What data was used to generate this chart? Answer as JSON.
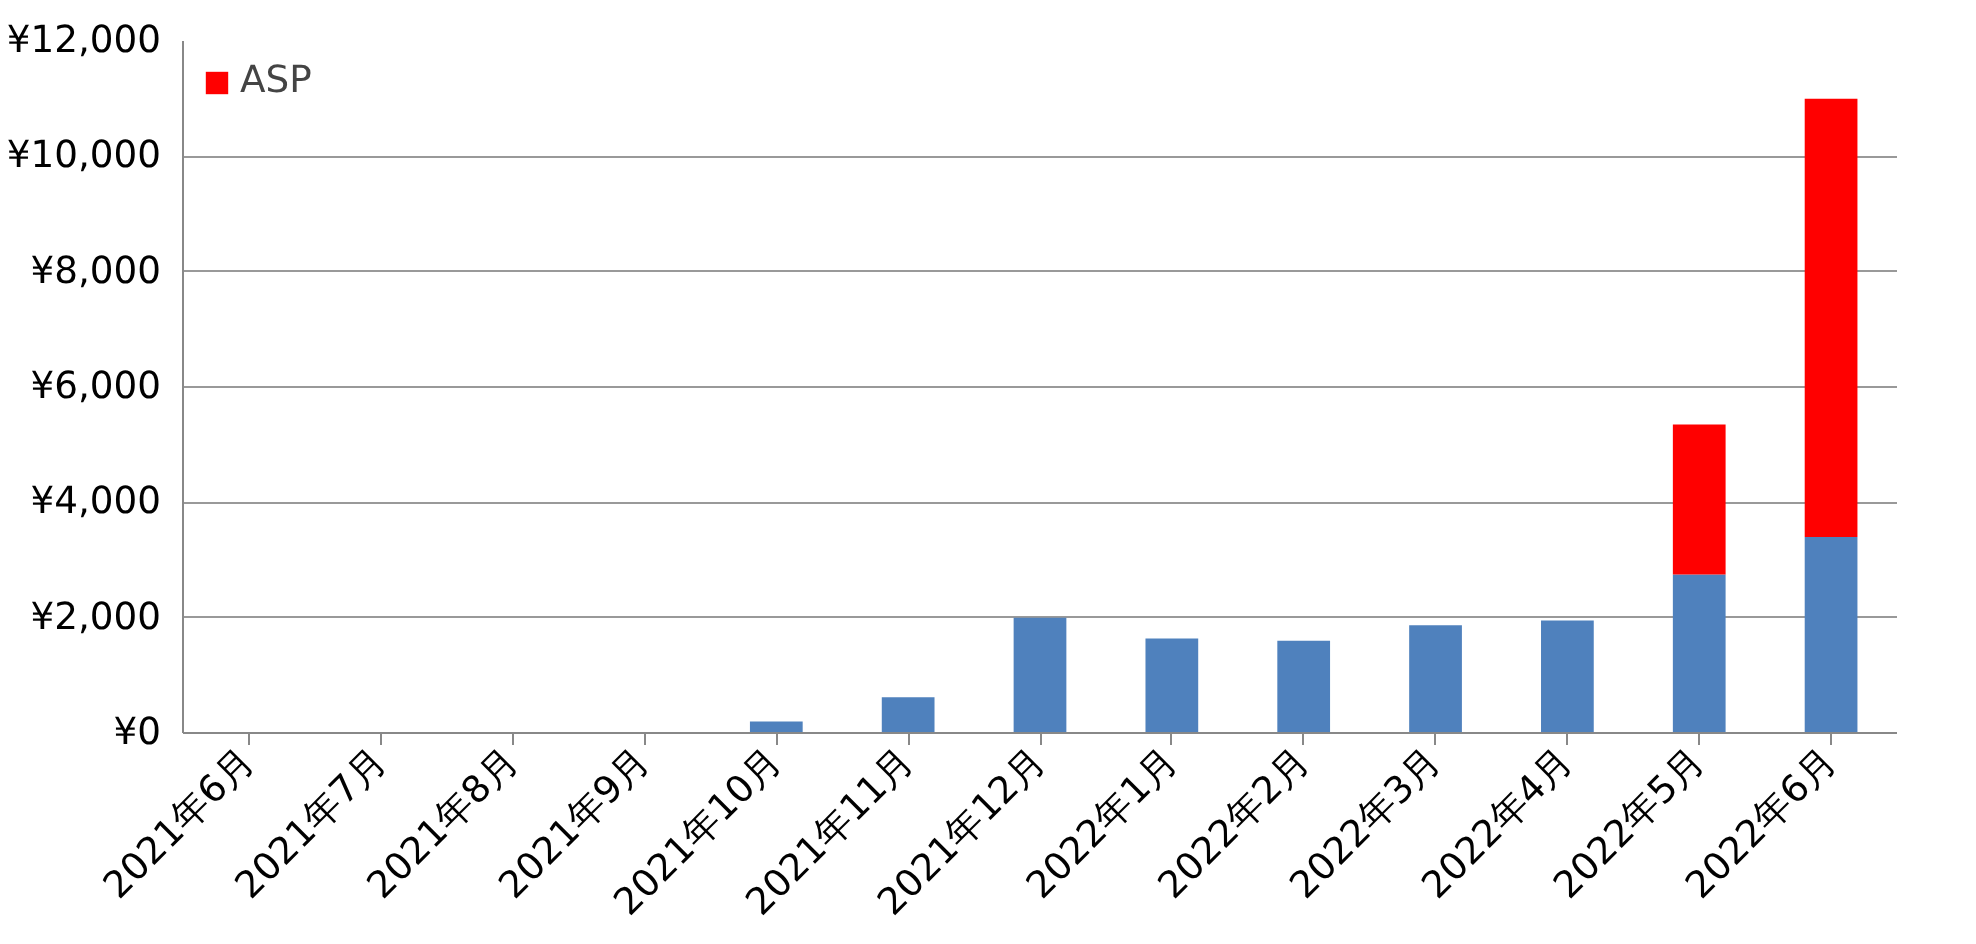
{
  "chart_data": {
    "type": "bar",
    "stacked": true,
    "categories": [
      "2021年6月",
      "2021年7月",
      "2021年8月",
      "2021年9月",
      "2021年10月",
      "2021年11月",
      "2021年12月",
      "2022年1月",
      "2022年2月",
      "2022年3月",
      "2022年4月",
      "2022年5月",
      "2022年6月"
    ],
    "series": [
      {
        "color": "#4f81bd",
        "values": [
          0,
          0,
          0,
          0,
          200,
          620,
          2000,
          1640,
          1600,
          1870,
          1950,
          2750,
          3400
        ]
      },
      {
        "name": "ASP",
        "color": "#ff0000",
        "values": [
          0,
          0,
          0,
          0,
          0,
          0,
          0,
          0,
          0,
          0,
          0,
          2600,
          7600
        ]
      }
    ],
    "ylim": [
      0,
      12000
    ],
    "yticks": [
      {
        "value": 0,
        "label": "¥0"
      },
      {
        "value": 2000,
        "label": "¥2,000"
      },
      {
        "value": 4000,
        "label": "¥4,000"
      },
      {
        "value": 6000,
        "label": "¥6,000"
      },
      {
        "value": 8000,
        "label": "¥8,000"
      },
      {
        "value": 10000,
        "label": "¥10,000"
      },
      {
        "value": 12000,
        "label": "¥12,000"
      }
    ],
    "grid": "y",
    "legend": "top left"
  }
}
